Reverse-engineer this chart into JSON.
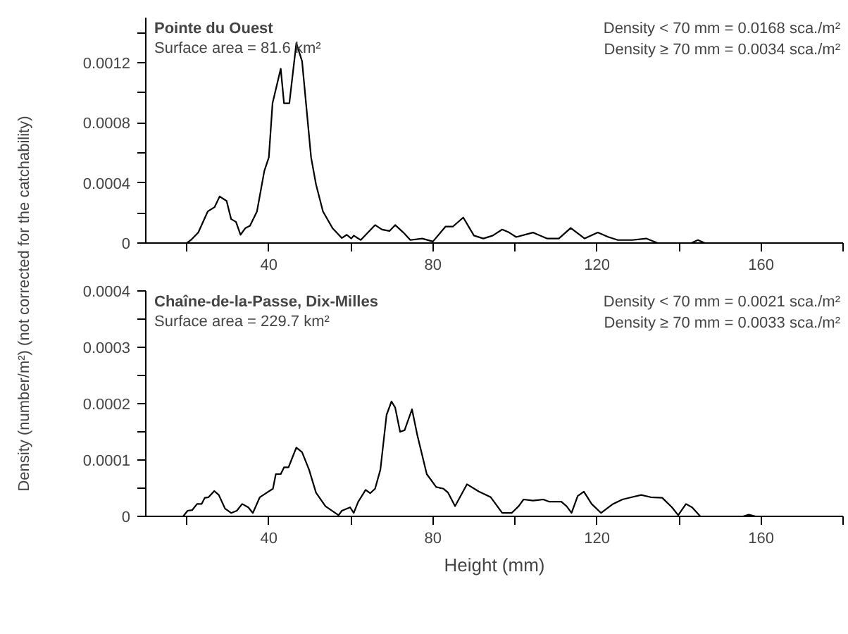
{
  "chart_data": [
    {
      "type": "line",
      "title": "Pointe du Ouest",
      "subtitle": "Surface area = 81.6 km²",
      "annotations": [
        "Density < 70 mm = 0.0168 sca./m²",
        "Density ≥ 70 mm = 0.0034 sca./m²"
      ],
      "ylabel": "Density (number/m²) (not corrected for the catchability)",
      "color": "#000000",
      "grid": false,
      "xlim": [
        10,
        180
      ],
      "xticks": [
        {
          "value": 20,
          "label": null
        },
        40,
        {
          "value": 60,
          "label": null
        },
        80,
        {
          "value": 100,
          "label": null
        },
        120,
        {
          "value": 140,
          "label": null
        },
        160,
        {
          "value": 180,
          "label": null
        }
      ],
      "ylim": [
        0,
        0.0015
      ],
      "yticks": [
        0,
        {
          "value": 0.0002,
          "label": null
        },
        0.0004,
        {
          "value": 0.0006,
          "label": null
        },
        0.0008,
        {
          "value": 0.001,
          "label": null
        },
        0.0012,
        {
          "value": 0.0014,
          "label": null
        }
      ],
      "x": [
        10,
        20,
        21,
        22.8,
        25.1,
        26.8,
        28,
        29.7,
        30.8,
        32,
        33.1,
        34.3,
        35.4,
        37.1,
        38.9,
        40,
        40.9,
        42.9,
        43.7,
        45,
        46.7,
        48.1,
        50.3,
        51.5,
        53.2,
        55.5,
        57.8,
        59,
        60.1,
        60.7,
        62.4,
        65.9,
        67.6,
        69.4,
        70.8,
        72.8,
        74.5,
        77.4,
        80,
        83.1,
        84.9,
        87.4,
        90,
        92.3,
        94.6,
        96.9,
        98.6,
        100.3,
        104.4,
        107.8,
        110.7,
        113.6,
        117,
        120.2,
        122.8,
        125.1,
        128.6,
        132,
        134.8,
        143,
        144.6,
        146.3
      ],
      "values": [
        0,
        0,
        2e-05,
        7e-05,
        0.00021,
        0.00024,
        0.00031,
        0.00028,
        0.00016,
        0.00014,
        5.5e-05,
        0.0001,
        0.000115,
        0.00021,
        0.00048,
        0.00057,
        0.00093,
        0.00116,
        0.00093,
        0.00093,
        0.00133,
        0.00121,
        0.00057,
        0.00039,
        0.00021,
        0.0001,
        3.3e-05,
        5.5e-05,
        3e-05,
        5e-05,
        2e-05,
        0.00012,
        9e-05,
        8e-05,
        0.00012,
        7e-05,
        2e-05,
        3e-05,
        1e-05,
        0.00011,
        0.00011,
        0.00017,
        5e-05,
        3e-05,
        5e-05,
        9e-05,
        7e-05,
        4e-05,
        7e-05,
        3e-05,
        3e-05,
        0.0001,
        3e-05,
        7e-05,
        4e-05,
        2e-05,
        2e-05,
        3e-05,
        0,
        0,
        2e-05,
        0
      ]
    },
    {
      "type": "line",
      "title": "Chaîne-de-la-Passe, Dix-Milles",
      "subtitle": "Surface area = 229.7 km²",
      "annotations": [
        "Density < 70 mm = 0.0021 sca./m²",
        "Density ≥ 70 mm = 0.0033 sca./m²"
      ],
      "xlabel": "Height (mm)",
      "color": "#000000",
      "grid": false,
      "xlim": [
        10,
        180
      ],
      "xticks": [
        {
          "value": 20,
          "label": null
        },
        40,
        {
          "value": 60,
          "label": null
        },
        80,
        {
          "value": 100,
          "label": null
        },
        120,
        {
          "value": 140,
          "label": null
        },
        160,
        {
          "value": 180,
          "label": null
        }
      ],
      "ylim": [
        0,
        0.0004
      ],
      "yticks": [
        0,
        {
          "value": 5e-05,
          "label": null
        },
        0.0001,
        {
          "value": 0.00015,
          "label": null
        },
        0.0002,
        {
          "value": 0.00025,
          "label": null
        },
        0.0003,
        {
          "value": 0.00035,
          "label": null
        },
        0.0004
      ],
      "x": [
        10,
        19.1,
        20.2,
        21.3,
        22.5,
        23.6,
        24.4,
        25.3,
        26.7,
        27.8,
        29.3,
        30.8,
        32.2,
        33.5,
        35,
        36.1,
        37.8,
        39.5,
        41,
        41.7,
        42.9,
        43.7,
        44.8,
        45.5,
        46.7,
        48.1,
        49.8,
        51.5,
        53.8,
        57,
        57.8,
        59.8,
        60.7,
        61.8,
        63.6,
        64.7,
        65.9,
        67.2,
        68.7,
        69.9,
        70.8,
        72,
        73.1,
        74.9,
        76.2,
        78.5,
        80.8,
        82.6,
        83.7,
        85.4,
        88.3,
        91.2,
        94.1,
        96.9,
        99.2,
        100.9,
        102.1,
        104.4,
        106.9,
        108.4,
        111.3,
        112.6,
        113.8,
        115.3,
        116.8,
        118.7,
        121,
        123.9,
        126.2,
        128.5,
        130.8,
        133.1,
        135.9,
        138.3,
        139.8,
        141.7,
        143.2,
        145.2,
        155.6,
        157,
        158.7,
        160
      ],
      "values": [
        0,
        0,
        1e-05,
        1.1e-05,
        2.2e-05,
        2.2e-05,
        3.3e-05,
        3.4e-05,
        4.5e-05,
        3.8e-05,
        1.4e-05,
        6e-06,
        1e-05,
        2.2e-05,
        1.6e-05,
        6e-06,
        3.4e-05,
        4.2e-05,
        4.9e-05,
        7.5e-05,
        7.5e-05,
        8.7e-05,
        8.7e-05,
        0.0001,
        0.000122,
        0.000114,
        8.3e-05,
        4.2e-05,
        1.8e-05,
        2e-06,
        1e-05,
        1.6e-05,
        6e-06,
        2.6e-05,
        4.7e-05,
        4.1e-05,
        4.9e-05,
        8.3e-05,
        0.00018,
        0.000204,
        0.000193,
        0.00015,
        0.000153,
        0.00019,
        0.000144,
        7.5e-05,
        5.2e-05,
        4.9e-05,
        4.2e-05,
        1.8e-05,
        5.7e-05,
        4.4e-05,
        3.4e-05,
        6e-06,
        6e-06,
        1.8e-05,
        3e-05,
        2.8e-05,
        3e-05,
        2.6e-05,
        2.6e-05,
        1.8e-05,
        6e-06,
        3.6e-05,
        4.4e-05,
        2.2e-05,
        6e-06,
        2.2e-05,
        3e-05,
        3.4e-05,
        3.8e-05,
        3.4e-05,
        3.3e-05,
        1.6e-05,
        2e-06,
        2.2e-05,
        1.6e-05,
        0,
        0,
        3e-06,
        0,
        0
      ]
    }
  ]
}
